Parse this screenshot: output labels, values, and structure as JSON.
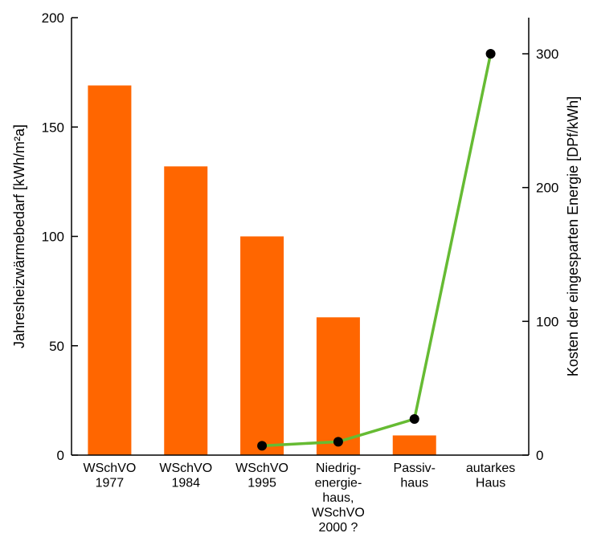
{
  "chart_data": {
    "type": "bar",
    "categories": [
      [
        "WSchVO",
        "1977"
      ],
      [
        "WSchVO",
        "1984"
      ],
      [
        "WSchVO",
        "1995"
      ],
      [
        "Niedrig-",
        "energie-",
        "haus,",
        "WSchVO",
        "2000 ?"
      ],
      [
        "Passiv-",
        "haus"
      ],
      [
        "autarkes",
        "Haus"
      ]
    ],
    "series": [
      {
        "type": "bar",
        "axis": "left",
        "values": [
          169,
          132,
          100,
          63,
          9,
          null
        ],
        "color": "#ff6600"
      },
      {
        "type": "line",
        "axis": "right",
        "values": [
          null,
          null,
          7,
          10,
          27,
          300
        ],
        "color": "#66bb33",
        "marker_color": "#000000"
      }
    ],
    "ylabel": "Jahresheizwärmebedarf [kWh/m²a]",
    "ylabel_right": "Kosten der eingesparten Energie [DPf/kWh]",
    "ylim": [
      0,
      200
    ],
    "ylim_right": [
      0,
      327
    ],
    "yticks": [
      "0",
      "50",
      "100",
      "150",
      "200"
    ],
    "yticks_right": [
      "0",
      "100",
      "200",
      "300"
    ],
    "grid": false,
    "legend": "none"
  }
}
